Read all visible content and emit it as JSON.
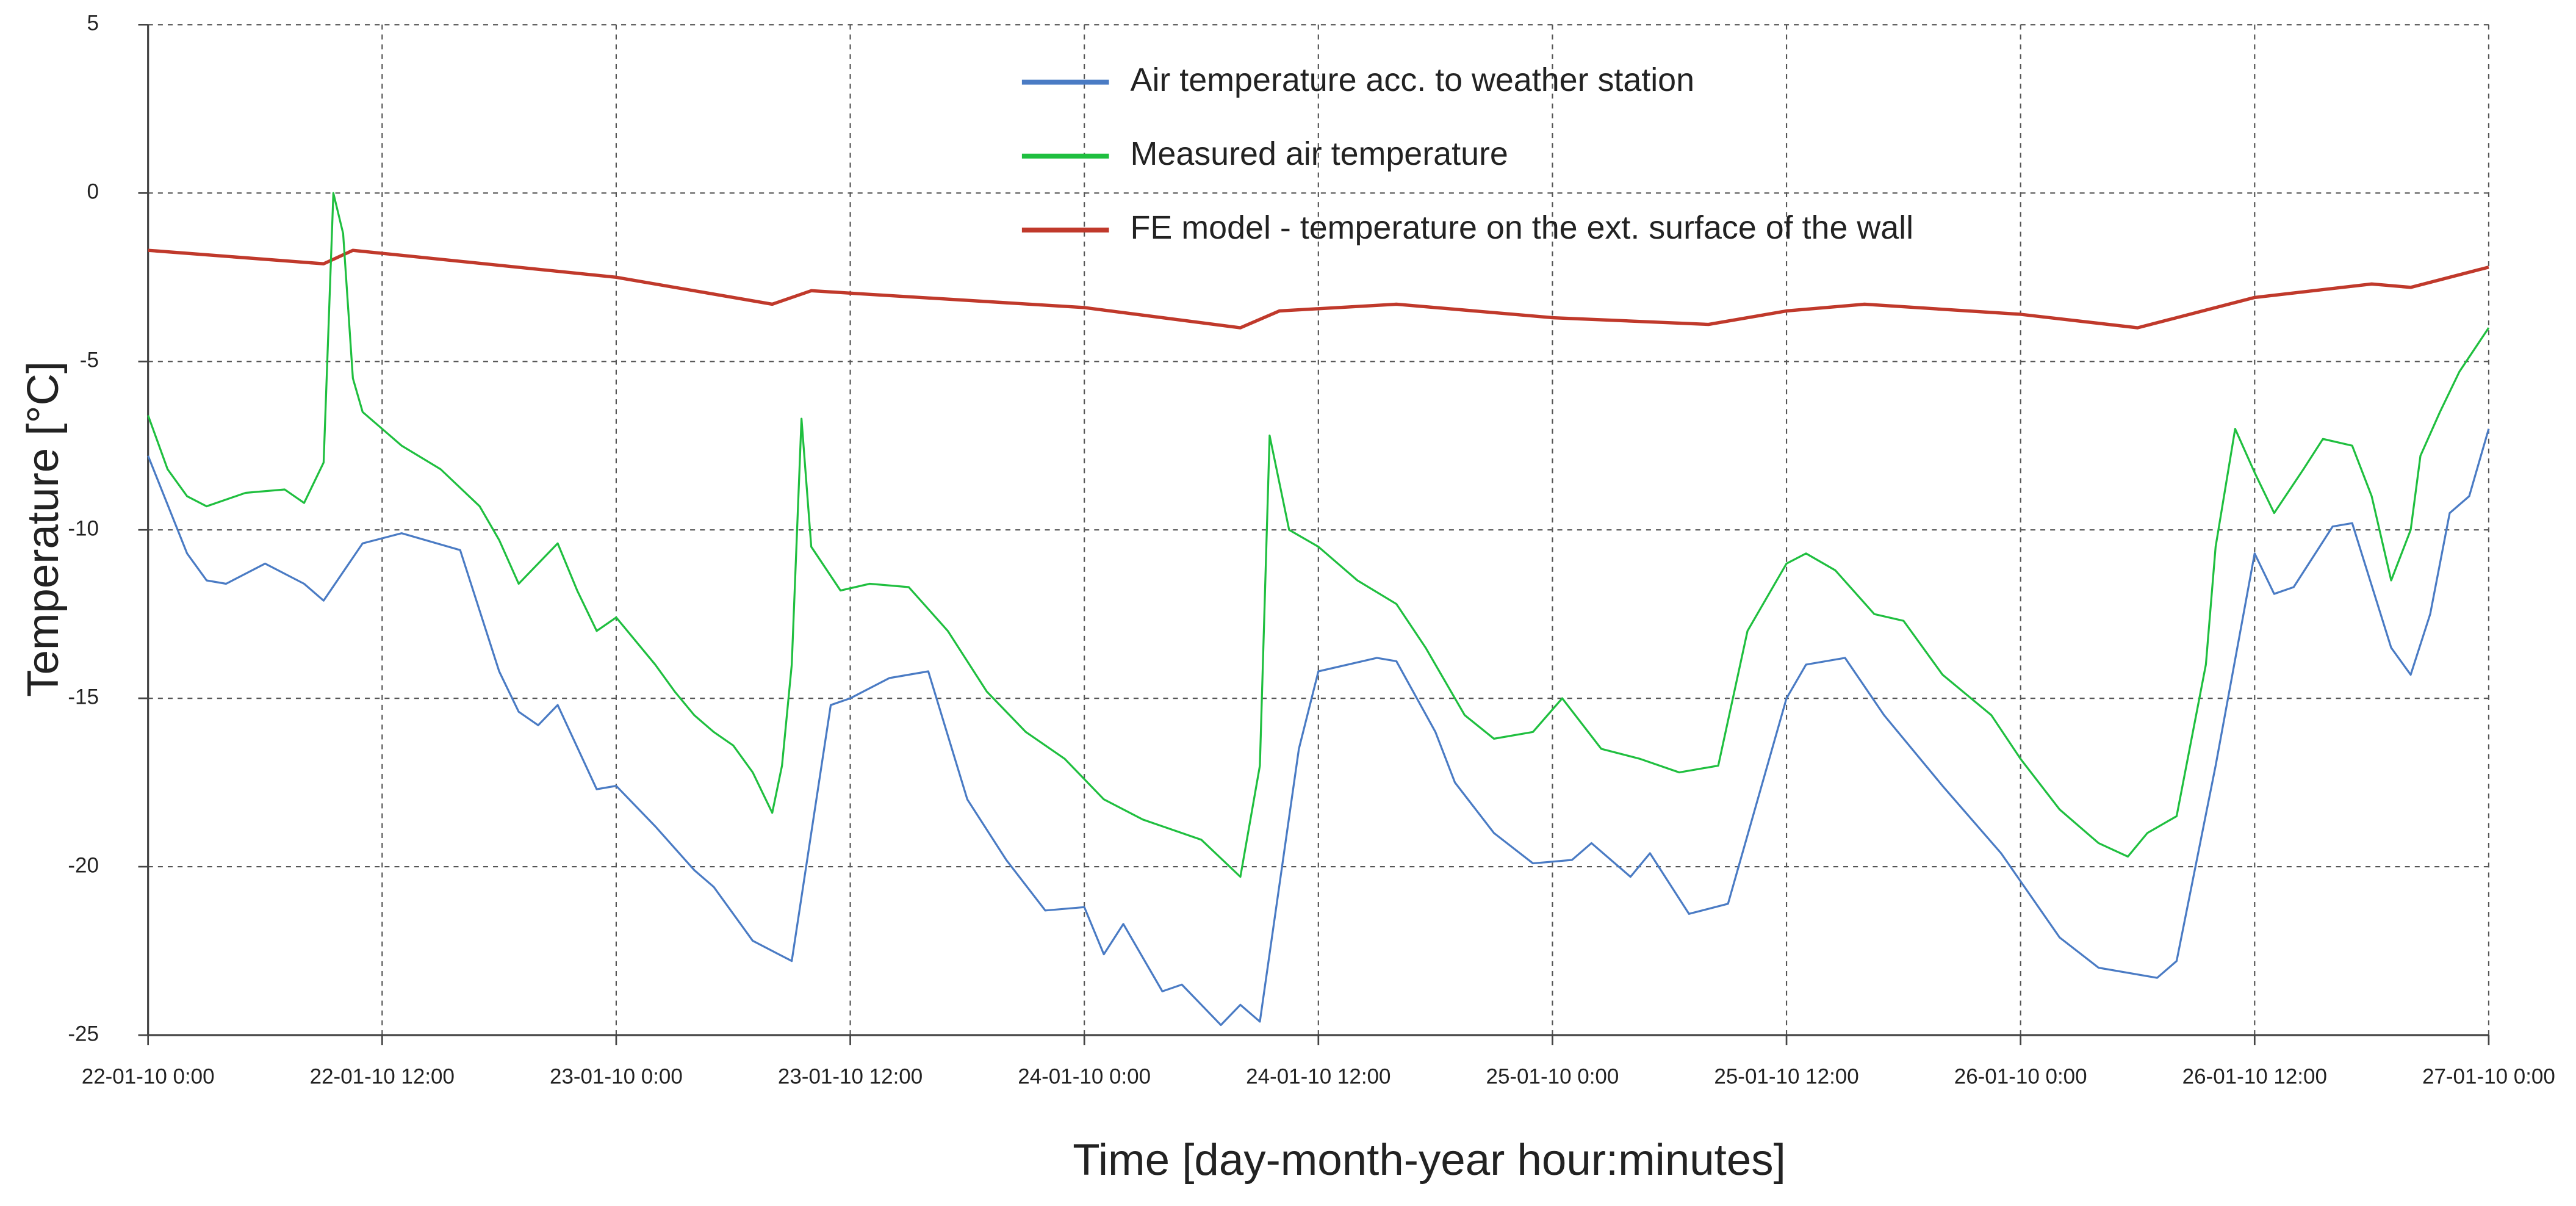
{
  "chart_data": {
    "type": "line",
    "xlabel": "Time [day-month-year  hour:minutes]",
    "ylabel": "Temperature [°C]",
    "xlim": [
      "2010-01-22 00:00",
      "2010-01-27 00:00"
    ],
    "xticks": [
      {
        "value": "2010-01-22 00:00",
        "label": "22-01-10 0:00"
      },
      {
        "value": "2010-01-22 12:00",
        "label": "22-01-10 12:00"
      },
      {
        "value": "2010-01-23 00:00",
        "label": "23-01-10 0:00"
      },
      {
        "value": "2010-01-23 12:00",
        "label": "23-01-10 12:00"
      },
      {
        "value": "2010-01-24 00:00",
        "label": "24-01-10 0:00"
      },
      {
        "value": "2010-01-24 12:00",
        "label": "24-01-10 12:00"
      },
      {
        "value": "2010-01-25 00:00",
        "label": "25-01-10 0:00"
      },
      {
        "value": "2010-01-25 12:00",
        "label": "25-01-10 12:00"
      },
      {
        "value": "2010-01-26 00:00",
        "label": "26-01-10 0:00"
      },
      {
        "value": "2010-01-26 12:00",
        "label": "26-01-10 12:00"
      },
      {
        "value": "2010-01-27 00:00",
        "label": "27-01-10 0:00"
      }
    ],
    "ylim": [
      -25,
      5
    ],
    "yticks": [
      5,
      0,
      -5,
      -10,
      -15,
      -20,
      -25
    ],
    "grid": true,
    "legend": "top",
    "series": [
      {
        "name": "Air temperature acc. to  weather station",
        "color": "#4a7bc4",
        "x": [
          "2010-01-22 00:00",
          "2010-01-22 02:00",
          "2010-01-22 03:00",
          "2010-01-22 04:00",
          "2010-01-22 06:00",
          "2010-01-22 08:00",
          "2010-01-22 09:00",
          "2010-01-22 11:00",
          "2010-01-22 13:00",
          "2010-01-22 16:00",
          "2010-01-22 18:00",
          "2010-01-22 19:00",
          "2010-01-22 20:00",
          "2010-01-22 21:00",
          "2010-01-22 23:00",
          "2010-01-23 00:00",
          "2010-01-23 02:00",
          "2010-01-23 04:00",
          "2010-01-23 05:00",
          "2010-01-23 07:00",
          "2010-01-23 09:00",
          "2010-01-23 10:00",
          "2010-01-23 11:00",
          "2010-01-23 12:00",
          "2010-01-23 14:00",
          "2010-01-23 16:00",
          "2010-01-23 18:00",
          "2010-01-23 20:00",
          "2010-01-23 22:00",
          "2010-01-24 00:00",
          "2010-01-24 01:00",
          "2010-01-24 02:00",
          "2010-01-24 04:00",
          "2010-01-24 05:00",
          "2010-01-24 07:00",
          "2010-01-24 08:00",
          "2010-01-24 09:00",
          "2010-01-24 11:00",
          "2010-01-24 12:00",
          "2010-01-24 15:00",
          "2010-01-24 16:00",
          "2010-01-24 18:00",
          "2010-01-24 19:00",
          "2010-01-24 21:00",
          "2010-01-24 23:00",
          "2010-01-25 01:00",
          "2010-01-25 02:00",
          "2010-01-25 04:00",
          "2010-01-25 05:00",
          "2010-01-25 07:00",
          "2010-01-25 09:00",
          "2010-01-25 12:00",
          "2010-01-25 13:00",
          "2010-01-25 15:00",
          "2010-01-25 17:00",
          "2010-01-25 20:00",
          "2010-01-25 23:00",
          "2010-01-26 02:00",
          "2010-01-26 04:00",
          "2010-01-26 07:00",
          "2010-01-26 08:00",
          "2010-01-26 10:00",
          "2010-01-26 12:00",
          "2010-01-26 13:00",
          "2010-01-26 14:00",
          "2010-01-26 16:00",
          "2010-01-26 17:00",
          "2010-01-26 19:00",
          "2010-01-26 20:00",
          "2010-01-26 21:00",
          "2010-01-26 22:00",
          "2010-01-26 23:00",
          "2010-01-27 00:00"
        ],
        "values": [
          -7.8,
          -10.7,
          -11.5,
          -11.6,
          -11.0,
          -11.6,
          -12.1,
          -10.4,
          -10.1,
          -10.6,
          -14.2,
          -15.4,
          -15.8,
          -15.2,
          -17.7,
          -17.6,
          -18.8,
          -20.1,
          -20.6,
          -22.2,
          -22.8,
          -19.0,
          -15.2,
          -15.0,
          -14.4,
          -14.2,
          -18.0,
          -19.8,
          -21.3,
          -21.2,
          -22.6,
          -21.7,
          -23.7,
          -23.5,
          -24.7,
          -24.1,
          -24.6,
          -16.5,
          -14.2,
          -13.8,
          -13.9,
          -16.0,
          -17.5,
          -19.0,
          -19.9,
          -19.8,
          -19.3,
          -20.3,
          -19.6,
          -21.4,
          -21.1,
          -15.0,
          -14.0,
          -13.8,
          -15.5,
          -17.6,
          -19.6,
          -22.1,
          -23.0,
          -23.3,
          -22.8,
          -17.0,
          -10.7,
          -11.9,
          -11.7,
          -9.9,
          -9.8,
          -13.5,
          -14.3,
          -12.5,
          -9.5,
          -9.0,
          -7.0
        ]
      },
      {
        "name": "Measured air temperature",
        "color": "#1fbf3f",
        "x": [
          "2010-01-22 00:00",
          "2010-01-22 01:00",
          "2010-01-22 02:00",
          "2010-01-22 03:00",
          "2010-01-22 05:00",
          "2010-01-22 07:00",
          "2010-01-22 08:00",
          "2010-01-22 09:00",
          "2010-01-22 09:30",
          "2010-01-22 10:00",
          "2010-01-22 10:30",
          "2010-01-22 11:00",
          "2010-01-22 13:00",
          "2010-01-22 15:00",
          "2010-01-22 17:00",
          "2010-01-22 18:00",
          "2010-01-22 19:00",
          "2010-01-22 20:00",
          "2010-01-22 21:00",
          "2010-01-22 22:00",
          "2010-01-22 23:00",
          "2010-01-23 00:00",
          "2010-01-23 01:00",
          "2010-01-23 02:00",
          "2010-01-23 03:00",
          "2010-01-23 04:00",
          "2010-01-23 05:00",
          "2010-01-23 06:00",
          "2010-01-23 07:00",
          "2010-01-23 08:00",
          "2010-01-23 08:30",
          "2010-01-23 09:00",
          "2010-01-23 09:30",
          "2010-01-23 10:00",
          "2010-01-23 11:30",
          "2010-01-23 13:00",
          "2010-01-23 15:00",
          "2010-01-23 17:00",
          "2010-01-23 19:00",
          "2010-01-23 21:00",
          "2010-01-23 23:00",
          "2010-01-24 01:00",
          "2010-01-24 03:00",
          "2010-01-24 06:00",
          "2010-01-24 08:00",
          "2010-01-24 09:00",
          "2010-01-24 09:30",
          "2010-01-24 10:30",
          "2010-01-24 12:00",
          "2010-01-24 14:00",
          "2010-01-24 16:00",
          "2010-01-24 17:30",
          "2010-01-24 19:30",
          "2010-01-24 21:00",
          "2010-01-24 23:00",
          "2010-01-25 00:30",
          "2010-01-25 02:30",
          "2010-01-25 04:30",
          "2010-01-25 06:30",
          "2010-01-25 08:30",
          "2010-01-25 10:00",
          "2010-01-25 12:00",
          "2010-01-25 13:00",
          "2010-01-25 14:30",
          "2010-01-25 16:30",
          "2010-01-25 18:00",
          "2010-01-25 20:00",
          "2010-01-25 22:30",
          "2010-01-26 00:00",
          "2010-01-26 02:00",
          "2010-01-26 04:00",
          "2010-01-26 05:30",
          "2010-01-26 06:30",
          "2010-01-26 08:00",
          "2010-01-26 09:30",
          "2010-01-26 10:00",
          "2010-01-26 11:00",
          "2010-01-26 12:00",
          "2010-01-26 13:00",
          "2010-01-26 14:30",
          "2010-01-26 15:30",
          "2010-01-26 17:00",
          "2010-01-26 18:00",
          "2010-01-26 19:00",
          "2010-01-26 20:00",
          "2010-01-26 20:30",
          "2010-01-26 21:30",
          "2010-01-26 22:30",
          "2010-01-27 00:00"
        ],
        "values": [
          -6.6,
          -8.2,
          -9.0,
          -9.3,
          -8.9,
          -8.8,
          -9.2,
          -8.0,
          0.0,
          -1.2,
          -5.5,
          -6.5,
          -7.5,
          -8.2,
          -9.3,
          -10.3,
          -11.6,
          -11.0,
          -10.4,
          -11.8,
          -13.0,
          -12.6,
          -13.3,
          -14.0,
          -14.8,
          -15.5,
          -16.0,
          -16.4,
          -17.2,
          -18.4,
          -17.0,
          -14.0,
          -6.7,
          -10.5,
          -11.8,
          -11.6,
          -11.7,
          -13.0,
          -14.8,
          -16.0,
          -16.8,
          -18.0,
          -18.6,
          -19.2,
          -20.3,
          -17.0,
          -7.2,
          -10.0,
          -10.5,
          -11.5,
          -12.2,
          -13.5,
          -15.5,
          -16.2,
          -16.0,
          -15.0,
          -16.5,
          -16.8,
          -17.2,
          -17.0,
          -13.0,
          -11.0,
          -10.7,
          -11.2,
          -12.5,
          -12.7,
          -14.3,
          -15.5,
          -16.8,
          -18.3,
          -19.3,
          -19.7,
          -19.0,
          -18.5,
          -14.0,
          -10.5,
          -7.0,
          -8.3,
          -9.5,
          -8.2,
          -7.3,
          -7.5,
          -9.0,
          -11.5,
          -10.0,
          -7.8,
          -6.5,
          -5.3,
          -4.0
        ]
      },
      {
        "name": "FE model - temperature on the ext. surface of the wall",
        "color": "#c0392b",
        "x": [
          "2010-01-22 00:00",
          "2010-01-22 09:00",
          "2010-01-22 10:30",
          "2010-01-23 00:00",
          "2010-01-23 08:00",
          "2010-01-23 10:00",
          "2010-01-24 00:00",
          "2010-01-24 08:00",
          "2010-01-24 10:00",
          "2010-01-24 16:00",
          "2010-01-25 00:00",
          "2010-01-25 08:00",
          "2010-01-25 12:00",
          "2010-01-25 16:00",
          "2010-01-26 00:00",
          "2010-01-26 06:00",
          "2010-01-26 12:00",
          "2010-01-26 18:00",
          "2010-01-26 20:00",
          "2010-01-27 00:00"
        ],
        "values": [
          -1.7,
          -2.1,
          -1.7,
          -2.5,
          -3.3,
          -2.9,
          -3.4,
          -4.0,
          -3.5,
          -3.3,
          -3.7,
          -3.9,
          -3.5,
          -3.3,
          -3.6,
          -4.0,
          -3.1,
          -2.7,
          -2.8,
          -2.2
        ]
      }
    ]
  }
}
